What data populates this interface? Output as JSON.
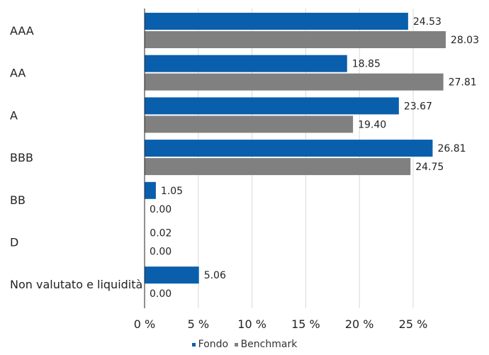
{
  "chart_data": {
    "type": "bar",
    "orientation": "horizontal",
    "categories": [
      "AAA",
      "AA",
      "A",
      "BBB",
      "BB",
      "D",
      "Non valutato e liquidità"
    ],
    "series": [
      {
        "name": "Fondo",
        "color": "#0a5fad",
        "values": [
          24.53,
          18.85,
          23.67,
          26.81,
          1.05,
          0.02,
          5.06
        ],
        "labels": [
          "24.53",
          "18.85",
          "23.67",
          "26.81",
          "1.05",
          "0.02",
          "5.06"
        ]
      },
      {
        "name": "Benchmark",
        "color": "#808080",
        "values": [
          28.03,
          27.81,
          19.4,
          24.75,
          0.0,
          0.0,
          0.0
        ],
        "labels": [
          "28.03",
          "27.81",
          "19.40",
          "24.75",
          "0.00",
          "0.00",
          "0.00"
        ]
      }
    ],
    "xticks": [
      "0 %",
      "5 %",
      "10 %",
      "15 %",
      "20 %",
      "25 %"
    ],
    "xlim": [
      0,
      28
    ],
    "grid": true,
    "legend_position": "bottom-center"
  },
  "legend": {
    "items": [
      {
        "label": "Fondo",
        "color": "#0a5fad"
      },
      {
        "label": "Benchmark",
        "color": "#808080"
      }
    ]
  }
}
